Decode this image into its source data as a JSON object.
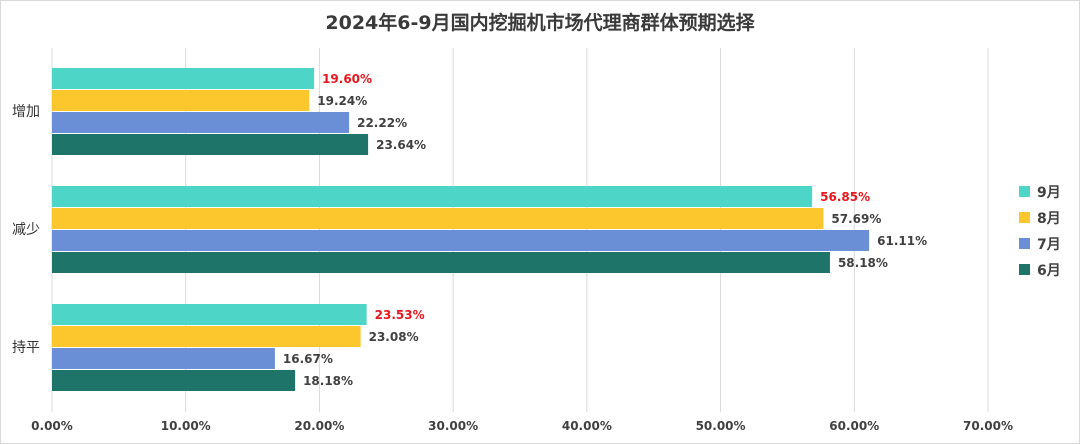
{
  "chart_data": {
    "type": "bar",
    "orientation": "horizontal",
    "title": "2024年6-9月国内挖掘机市场代理商群体预期选择",
    "categories": [
      "增加",
      "减少",
      "持平"
    ],
    "series": [
      {
        "name": "9月",
        "color": "#4dd6c8",
        "values": [
          19.6,
          56.85,
          23.53
        ],
        "labels": [
          "19.60%",
          "56.85%",
          "23.53%"
        ],
        "label_color": "#e8171d"
      },
      {
        "name": "8月",
        "color": "#fcc72d",
        "values": [
          19.24,
          57.69,
          23.08
        ],
        "labels": [
          "19.24%",
          "57.69%",
          "23.08%"
        ],
        "label_color": "#404040"
      },
      {
        "name": "7月",
        "color": "#6b8fd6",
        "values": [
          22.22,
          61.11,
          16.67
        ],
        "labels": [
          "22.22%",
          "61.11%",
          "16.67%"
        ],
        "label_color": "#404040"
      },
      {
        "name": "6月",
        "color": "#1f7469",
        "values": [
          23.64,
          58.18,
          18.18
        ],
        "labels": [
          "23.64%",
          "58.18%",
          "18.18%"
        ],
        "label_color": "#404040"
      }
    ],
    "xlim": [
      0,
      70
    ],
    "xticks": [
      0,
      10,
      20,
      30,
      40,
      50,
      60,
      70
    ],
    "xtick_labels": [
      "0.00%",
      "10.00%",
      "20.00%",
      "30.00%",
      "40.00%",
      "50.00%",
      "60.00%",
      "70.00%"
    ],
    "legend_order": [
      "9月",
      "8月",
      "7月",
      "6月"
    ],
    "legend_position": "right",
    "grid": true,
    "colors": {
      "grid": "#d9d9d9",
      "axis_text": "#404040"
    }
  }
}
